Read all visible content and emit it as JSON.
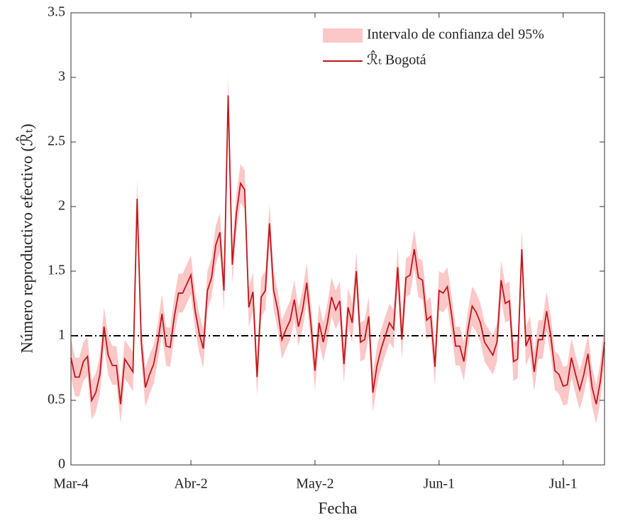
{
  "chart_data": {
    "type": "line",
    "xlabel": "Fecha",
    "ylabel": "Número reproductivo efectivo (ℛ̂ₜ)",
    "x": [
      0,
      1,
      2,
      3,
      4,
      5,
      6,
      7,
      8,
      9,
      10,
      11,
      12,
      13,
      14,
      15,
      16,
      17,
      18,
      19,
      20,
      21,
      22,
      23,
      24,
      25,
      26,
      27,
      28,
      29,
      30,
      31,
      32,
      33,
      34,
      35,
      36,
      37,
      38,
      39,
      40,
      41,
      42,
      43,
      44,
      45,
      46,
      47,
      48,
      49,
      50,
      51,
      52,
      53,
      54,
      55,
      56,
      57,
      58,
      59,
      60,
      61,
      62,
      63,
      64,
      65,
      66,
      67,
      68,
      69,
      70,
      71,
      72,
      73,
      74,
      75,
      76,
      77,
      78,
      79,
      80,
      81,
      82,
      83,
      84,
      85,
      86,
      87,
      88,
      89,
      90,
      91,
      92,
      93,
      94,
      95,
      96,
      97,
      98,
      99,
      100,
      101,
      102,
      103,
      104,
      105,
      106,
      107,
      108,
      109,
      110,
      111,
      112,
      113,
      114,
      115,
      116,
      117,
      118,
      119,
      120,
      121,
      122,
      123,
      124,
      125,
      126,
      127,
      128,
      129
    ],
    "series": [
      {
        "name": "Intervalo de confianza del 95%",
        "type": "band",
        "color": "#fcc7c7",
        "lower": [
          0.68,
          0.53,
          0.53,
          0.65,
          0.69,
          0.35,
          0.41,
          0.55,
          0.92,
          0.7,
          0.62,
          0.62,
          0.32,
          0.67,
          0.62,
          0.57,
          1.91,
          0.8,
          0.45,
          0.55,
          0.63,
          0.8,
          1.02,
          0.77,
          0.76,
          1.0,
          1.18,
          1.18,
          1.25,
          1.32,
          1.05,
          0.87,
          0.75,
          1.2,
          1.3,
          1.55,
          1.65,
          1.2,
          2.71,
          1.4,
          1.8,
          2.03,
          1.98,
          1.07,
          1.19,
          0.53,
          1.15,
          1.2,
          1.72,
          1.2,
          1.05,
          0.82,
          0.9,
          0.97,
          1.13,
          0.92,
          1.05,
          1.26,
          0.95,
          0.58,
          0.95,
          0.8,
          0.95,
          1.15,
          1.05,
          1.12,
          0.63,
          1.07,
          0.95,
          1.35,
          0.8,
          0.82,
          1.0,
          0.41,
          0.62,
          0.75,
          0.85,
          0.95,
          0.9,
          1.38,
          0.82,
          1.3,
          1.32,
          1.52,
          1.3,
          1.28,
          0.97,
          1.0,
          0.61,
          1.2,
          1.18,
          1.23,
          1.02,
          0.77,
          0.77,
          0.65,
          0.9,
          1.08,
          1.03,
          0.95,
          0.8,
          0.75,
          0.7,
          0.8,
          1.28,
          1.1,
          1.12,
          0.65,
          0.67,
          1.52,
          0.77,
          0.85,
          0.57,
          0.82,
          0.82,
          1.04,
          0.85,
          0.58,
          0.55,
          0.46,
          0.47,
          0.68,
          0.55,
          0.43,
          0.55,
          0.71,
          0.45,
          0.32,
          0.5,
          0.8
        ],
        "upper": [
          0.98,
          0.83,
          0.83,
          0.95,
          0.99,
          0.65,
          0.71,
          0.85,
          1.22,
          1.0,
          0.92,
          0.92,
          0.62,
          0.97,
          0.92,
          0.87,
          2.21,
          1.1,
          0.75,
          0.85,
          0.93,
          1.1,
          1.32,
          1.07,
          1.06,
          1.3,
          1.48,
          1.48,
          1.55,
          1.62,
          1.35,
          1.17,
          1.05,
          1.5,
          1.6,
          1.85,
          1.95,
          1.5,
          3.01,
          1.7,
          2.1,
          2.33,
          2.28,
          1.37,
          1.49,
          0.83,
          1.45,
          1.5,
          2.02,
          1.5,
          1.35,
          1.12,
          1.2,
          1.27,
          1.43,
          1.22,
          1.35,
          1.56,
          1.25,
          0.88,
          1.25,
          1.1,
          1.25,
          1.45,
          1.35,
          1.42,
          0.93,
          1.37,
          1.25,
          1.65,
          1.1,
          1.12,
          1.3,
          0.71,
          0.92,
          1.05,
          1.15,
          1.25,
          1.2,
          1.68,
          1.12,
          1.6,
          1.62,
          1.82,
          1.6,
          1.58,
          1.27,
          1.3,
          0.91,
          1.5,
          1.48,
          1.53,
          1.32,
          1.07,
          1.07,
          0.95,
          1.2,
          1.38,
          1.33,
          1.25,
          1.1,
          1.05,
          1.0,
          1.1,
          1.58,
          1.4,
          1.42,
          0.95,
          0.97,
          1.82,
          1.07,
          1.15,
          0.87,
          1.12,
          1.12,
          1.34,
          1.15,
          0.88,
          0.85,
          0.76,
          0.77,
          0.98,
          0.85,
          0.73,
          0.85,
          1.01,
          0.75,
          0.62,
          0.8,
          1.1
        ]
      },
      {
        "name": "ℛ̂ₜ Bogotá",
        "color": "#c0161c",
        "values": [
          0.83,
          0.68,
          0.68,
          0.8,
          0.84,
          0.5,
          0.56,
          0.7,
          1.07,
          0.85,
          0.77,
          0.77,
          0.47,
          0.82,
          0.77,
          0.72,
          2.06,
          0.95,
          0.6,
          0.7,
          0.78,
          0.95,
          1.17,
          0.92,
          0.91,
          1.15,
          1.33,
          1.33,
          1.4,
          1.47,
          1.2,
          1.02,
          0.9,
          1.35,
          1.45,
          1.7,
          1.8,
          1.35,
          2.86,
          1.55,
          1.95,
          2.18,
          2.13,
          1.22,
          1.34,
          0.68,
          1.3,
          1.35,
          1.87,
          1.35,
          1.2,
          0.97,
          1.05,
          1.12,
          1.28,
          1.07,
          1.2,
          1.41,
          1.1,
          0.73,
          1.1,
          0.95,
          1.1,
          1.3,
          1.2,
          1.27,
          0.78,
          1.22,
          1.1,
          1.5,
          0.95,
          0.97,
          1.15,
          0.56,
          0.77,
          0.9,
          1.0,
          1.1,
          1.05,
          1.53,
          0.97,
          1.45,
          1.47,
          1.67,
          1.45,
          1.43,
          1.12,
          1.15,
          0.76,
          1.35,
          1.33,
          1.38,
          1.17,
          0.92,
          0.92,
          0.8,
          1.05,
          1.23,
          1.18,
          1.1,
          0.95,
          0.9,
          0.85,
          0.95,
          1.43,
          1.25,
          1.27,
          0.8,
          0.82,
          1.67,
          0.92,
          1.0,
          0.72,
          0.97,
          0.97,
          1.19,
          1.0,
          0.73,
          0.7,
          0.61,
          0.62,
          0.83,
          0.7,
          0.58,
          0.7,
          0.86,
          0.6,
          0.47,
          0.65,
          0.95
        ]
      }
    ],
    "hline": 1,
    "xlim": [
      0,
      129
    ],
    "xticks": [
      {
        "value": 0,
        "label": "Mar-4"
      },
      {
        "value": 29,
        "label": "Abr-2"
      },
      {
        "value": 59,
        "label": "May-2"
      },
      {
        "value": 89,
        "label": "Jun-1"
      },
      {
        "value": 119,
        "label": "Jul-1"
      }
    ],
    "ylim": [
      0,
      3.5
    ],
    "yticks": [
      0,
      0.5,
      1,
      1.5,
      2,
      2.5,
      3,
      3.5
    ],
    "legend": "upper right"
  }
}
